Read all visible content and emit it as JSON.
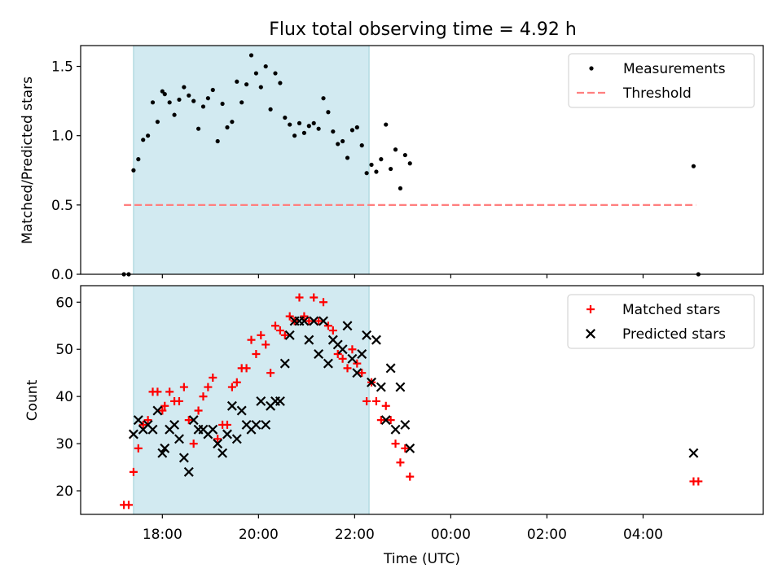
{
  "figure": {
    "title": "Flux total observing time = 4.92 h",
    "xlabel": "Time (UTC)",
    "x_tick_labels": [
      "18:00",
      "20:00",
      "22:00",
      "00:00",
      "02:00",
      "04:00"
    ],
    "x_ticks_hours": [
      18,
      20,
      22,
      24,
      26,
      28
    ],
    "x_range_hours": [
      16.3,
      30.5
    ],
    "shaded_span_hours": [
      17.4,
      22.3
    ],
    "shade_color": "#add8e6"
  },
  "chart_data": [
    {
      "type": "scatter",
      "panel": "top",
      "ylabel": "Matched/Predicted stars",
      "ylim": [
        0,
        1.65
      ],
      "y_ticks": [
        0.0,
        0.5,
        1.0,
        1.5
      ],
      "y_tick_labels": [
        "0.0",
        "0.5",
        "1.0",
        "1.5"
      ],
      "legend": {
        "position": "top-right",
        "entries": [
          "Measurements",
          "Threshold"
        ]
      },
      "threshold": {
        "name": "Threshold",
        "value": 0.5,
        "x_range_hours": [
          17.2,
          29.1
        ],
        "color": "#ff7f7f",
        "style": "dashed"
      },
      "series": [
        {
          "name": "Measurements",
          "marker": "dot",
          "color": "#000000",
          "points": [
            [
              17.2,
              0.0
            ],
            [
              17.3,
              0.0
            ],
            [
              17.4,
              0.75
            ],
            [
              17.5,
              0.83
            ],
            [
              17.6,
              0.97
            ],
            [
              17.7,
              1.0
            ],
            [
              17.8,
              1.24
            ],
            [
              17.9,
              1.1
            ],
            [
              18.0,
              1.32
            ],
            [
              18.05,
              1.3
            ],
            [
              18.15,
              1.24
            ],
            [
              18.25,
              1.15
            ],
            [
              18.35,
              1.26
            ],
            [
              18.45,
              1.35
            ],
            [
              18.55,
              1.29
            ],
            [
              18.65,
              1.25
            ],
            [
              18.75,
              1.05
            ],
            [
              18.85,
              1.21
            ],
            [
              18.95,
              1.27
            ],
            [
              19.05,
              1.33
            ],
            [
              19.15,
              0.96
            ],
            [
              19.25,
              1.23
            ],
            [
              19.35,
              1.06
            ],
            [
              19.45,
              1.1
            ],
            [
              19.55,
              1.39
            ],
            [
              19.65,
              1.24
            ],
            [
              19.75,
              1.37
            ],
            [
              19.85,
              1.58
            ],
            [
              19.95,
              1.45
            ],
            [
              20.05,
              1.35
            ],
            [
              20.15,
              1.5
            ],
            [
              20.25,
              1.19
            ],
            [
              20.35,
              1.45
            ],
            [
              20.45,
              1.38
            ],
            [
              20.55,
              1.13
            ],
            [
              20.65,
              1.08
            ],
            [
              20.75,
              1.0
            ],
            [
              20.85,
              1.09
            ],
            [
              20.95,
              1.02
            ],
            [
              21.05,
              1.07
            ],
            [
              21.15,
              1.09
            ],
            [
              21.25,
              1.05
            ],
            [
              21.35,
              1.27
            ],
            [
              21.45,
              1.17
            ],
            [
              21.55,
              1.03
            ],
            [
              21.65,
              0.94
            ],
            [
              21.75,
              0.96
            ],
            [
              21.85,
              0.84
            ],
            [
              21.95,
              1.04
            ],
            [
              22.05,
              1.06
            ],
            [
              22.15,
              0.93
            ],
            [
              22.25,
              0.73
            ],
            [
              22.35,
              0.79
            ],
            [
              22.45,
              0.74
            ],
            [
              22.55,
              0.83
            ],
            [
              22.65,
              1.08
            ],
            [
              22.75,
              0.76
            ],
            [
              22.85,
              0.9
            ],
            [
              22.95,
              0.62
            ],
            [
              23.05,
              0.86
            ],
            [
              23.15,
              0.8
            ],
            [
              29.05,
              0.78
            ],
            [
              29.15,
              0.0
            ]
          ]
        }
      ]
    },
    {
      "type": "scatter",
      "panel": "bottom",
      "ylabel": "Count",
      "ylim": [
        15,
        63.5
      ],
      "y_ticks": [
        20,
        30,
        40,
        50,
        60
      ],
      "y_tick_labels": [
        "20",
        "30",
        "40",
        "50",
        "60"
      ],
      "legend": {
        "position": "top-right",
        "entries": [
          "Matched stars",
          "Predicted stars"
        ]
      },
      "series": [
        {
          "name": "Matched stars",
          "marker": "plus",
          "color": "#ff0000",
          "points": [
            [
              17.2,
              17
            ],
            [
              17.3,
              17
            ],
            [
              17.4,
              24
            ],
            [
              17.5,
              29
            ],
            [
              17.6,
              34
            ],
            [
              17.7,
              35
            ],
            [
              17.8,
              41
            ],
            [
              17.9,
              41
            ],
            [
              18.0,
              37
            ],
            [
              18.05,
              38
            ],
            [
              18.15,
              41
            ],
            [
              18.25,
              39
            ],
            [
              18.35,
              39
            ],
            [
              18.45,
              42
            ],
            [
              18.55,
              35
            ],
            [
              18.65,
              30
            ],
            [
              18.75,
              37
            ],
            [
              18.85,
              40
            ],
            [
              18.95,
              42
            ],
            [
              19.05,
              44
            ],
            [
              19.15,
              31
            ],
            [
              19.25,
              34
            ],
            [
              19.35,
              34
            ],
            [
              19.45,
              42
            ],
            [
              19.55,
              43
            ],
            [
              19.65,
              46
            ],
            [
              19.75,
              46
            ],
            [
              19.85,
              52
            ],
            [
              19.95,
              49
            ],
            [
              20.05,
              53
            ],
            [
              20.15,
              51
            ],
            [
              20.25,
              45
            ],
            [
              20.35,
              55
            ],
            [
              20.45,
              54
            ],
            [
              20.55,
              53
            ],
            [
              20.65,
              57
            ],
            [
              20.75,
              56
            ],
            [
              20.85,
              61
            ],
            [
              20.95,
              57
            ],
            [
              21.05,
              56
            ],
            [
              21.15,
              61
            ],
            [
              21.25,
              56
            ],
            [
              21.35,
              60
            ],
            [
              21.45,
              55
            ],
            [
              21.55,
              54
            ],
            [
              21.65,
              49
            ],
            [
              21.75,
              48
            ],
            [
              21.85,
              46
            ],
            [
              21.95,
              50
            ],
            [
              22.05,
              47
            ],
            [
              22.15,
              45
            ],
            [
              22.25,
              39
            ],
            [
              22.35,
              43
            ],
            [
              22.45,
              39
            ],
            [
              22.55,
              35
            ],
            [
              22.65,
              38
            ],
            [
              22.75,
              35
            ],
            [
              22.85,
              30
            ],
            [
              22.95,
              26
            ],
            [
              23.05,
              29
            ],
            [
              23.15,
              23
            ],
            [
              29.05,
              22
            ],
            [
              29.15,
              22
            ]
          ]
        },
        {
          "name": "Predicted stars",
          "marker": "x",
          "color": "#000000",
          "points": [
            [
              17.4,
              32
            ],
            [
              17.5,
              35
            ],
            [
              17.6,
              33
            ],
            [
              17.7,
              34
            ],
            [
              17.8,
              33
            ],
            [
              17.9,
              37
            ],
            [
              18.0,
              28
            ],
            [
              18.05,
              29
            ],
            [
              18.15,
              33
            ],
            [
              18.25,
              34
            ],
            [
              18.35,
              31
            ],
            [
              18.45,
              27
            ],
            [
              18.55,
              24
            ],
            [
              18.65,
              35
            ],
            [
              18.75,
              33
            ],
            [
              18.85,
              33
            ],
            [
              18.95,
              32
            ],
            [
              19.05,
              33
            ],
            [
              19.15,
              30
            ],
            [
              19.25,
              28
            ],
            [
              19.35,
              32
            ],
            [
              19.45,
              38
            ],
            [
              19.55,
              31
            ],
            [
              19.65,
              37
            ],
            [
              19.75,
              34
            ],
            [
              19.85,
              33
            ],
            [
              19.95,
              34
            ],
            [
              20.05,
              39
            ],
            [
              20.15,
              34
            ],
            [
              20.25,
              38
            ],
            [
              20.35,
              39
            ],
            [
              20.45,
              39
            ],
            [
              20.55,
              47
            ],
            [
              20.65,
              53
            ],
            [
              20.75,
              56
            ],
            [
              20.85,
              56
            ],
            [
              20.95,
              56
            ],
            [
              21.05,
              52
            ],
            [
              21.15,
              56
            ],
            [
              21.25,
              49
            ],
            [
              21.35,
              56
            ],
            [
              21.45,
              47
            ],
            [
              21.55,
              52
            ],
            [
              21.65,
              51
            ],
            [
              21.75,
              50
            ],
            [
              21.85,
              55
            ],
            [
              21.95,
              48
            ],
            [
              22.05,
              45
            ],
            [
              22.15,
              49
            ],
            [
              22.25,
              53
            ],
            [
              22.35,
              43
            ],
            [
              22.45,
              52
            ],
            [
              22.55,
              42
            ],
            [
              22.65,
              35
            ],
            [
              22.75,
              46
            ],
            [
              22.85,
              33
            ],
            [
              22.95,
              42
            ],
            [
              23.05,
              34
            ],
            [
              23.15,
              29
            ],
            [
              29.05,
              28
            ]
          ]
        }
      ]
    }
  ]
}
